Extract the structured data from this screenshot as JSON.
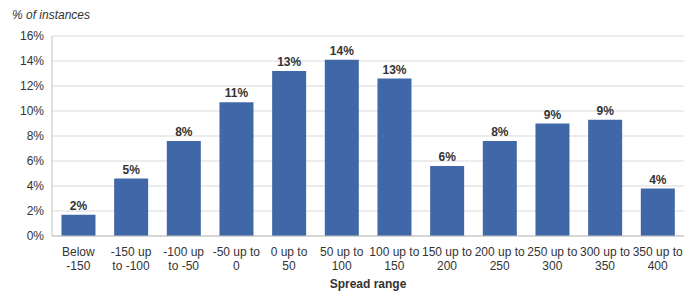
{
  "chart_data": {
    "type": "bar",
    "y_label": "% of instances",
    "x_label": "Spread range",
    "categories": [
      "Below -150",
      "-150 up to -100",
      "-100 up to -50",
      "-50 up to 0",
      "0 up to 50",
      "50 up to 100",
      "100 up to 150",
      "150 up to 200",
      "200 up to 250",
      "250 up to 300",
      "300 up to 350",
      "350 up to 400"
    ],
    "values": [
      1.7,
      4.6,
      7.6,
      10.7,
      13.2,
      14.1,
      12.6,
      5.6,
      7.6,
      9.0,
      9.3,
      3.8
    ],
    "value_labels": [
      "2%",
      "5%",
      "8%",
      "11%",
      "13%",
      "14%",
      "13%",
      "6%",
      "8%",
      "9%",
      "9%",
      "4%"
    ],
    "color": "#4068a8",
    "ylim": [
      0,
      16
    ],
    "yticks": [
      {
        "value": 0,
        "label": "0%"
      },
      {
        "value": 2,
        "label": "2%"
      },
      {
        "value": 4,
        "label": "4%"
      },
      {
        "value": 6,
        "label": "6%"
      },
      {
        "value": 8,
        "label": "8%"
      },
      {
        "value": 10,
        "label": "10%"
      },
      {
        "value": 12,
        "label": "12%"
      },
      {
        "value": 14,
        "label": "14%"
      },
      {
        "value": 16,
        "label": "16%"
      }
    ],
    "grid": true,
    "data_labels": true
  }
}
